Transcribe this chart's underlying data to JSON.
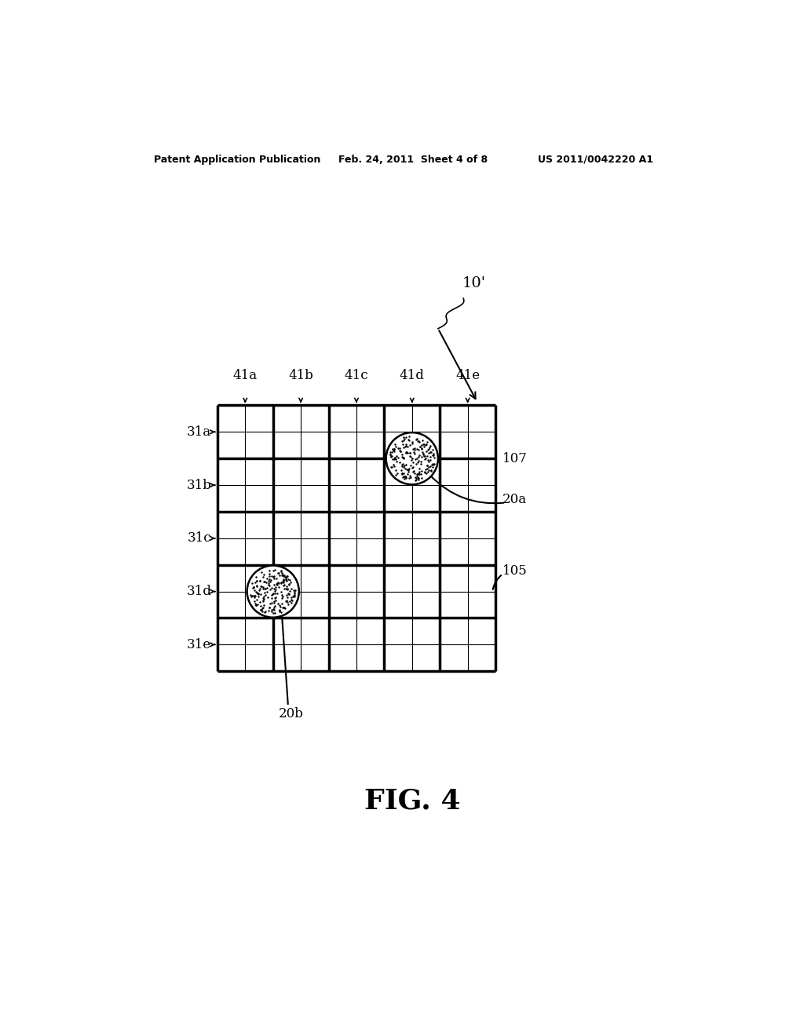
{
  "title": "FIG. 4",
  "header_left": "Patent Application Publication",
  "header_center": "Feb. 24, 2011  Sheet 4 of 8",
  "header_right": "US 2011/0042220 A1",
  "grid_rows": 5,
  "grid_cols": 5,
  "row_labels": [
    "31a",
    "31b",
    "31c",
    "31d",
    "31e"
  ],
  "col_labels": [
    "41a",
    "41b",
    "41c",
    "41d",
    "41e"
  ],
  "ref_10prime": "10'",
  "ref_107": "107",
  "ref_20a": "20a",
  "ref_105": "105",
  "ref_20b": "20b",
  "background": "#ffffff",
  "grid_color": "#000000",
  "fig4_fontsize": 26,
  "header_fontsize": 9,
  "label_fontsize": 12
}
